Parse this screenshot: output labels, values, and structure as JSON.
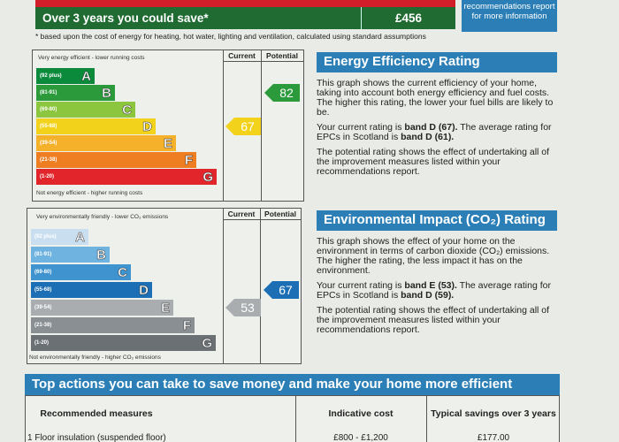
{
  "savings": {
    "label": "Over 3 years you could save*",
    "amount": "£456",
    "rec_note": "recommendations report for more information",
    "footnote": "* based upon the cost of energy for heating, hot water, lighting and ventilation, calculated using standard assumptions"
  },
  "eer_chart": {
    "top_label": "Very energy efficient - lower running costs",
    "bottom_label": "Not energy efficient - higher running costs",
    "col_current": "Current",
    "col_potential": "Potential",
    "bands": [
      {
        "range": "(92 plus)",
        "letter": "A",
        "color": "#0b8a3c"
      },
      {
        "range": "(81-91)",
        "letter": "B",
        "color": "#2a9a3a"
      },
      {
        "range": "(69-80)",
        "letter": "C",
        "color": "#8cc63e"
      },
      {
        "range": "(55-68)",
        "letter": "D",
        "color": "#f2d21b"
      },
      {
        "range": "(39-54)",
        "letter": "E",
        "color": "#f5b12a"
      },
      {
        "range": "(21-38)",
        "letter": "F",
        "color": "#ef7d22"
      },
      {
        "range": "(1-20)",
        "letter": "G",
        "color": "#e2252b"
      }
    ],
    "current": "67",
    "current_color": "#f2d21b",
    "potential": "82",
    "potential_color": "#2a9a3a"
  },
  "ei_chart": {
    "top_label": "Very environmentally friendly - lower CO₂ emissions",
    "bottom_label": "Not environmentally friendly - higher CO₂ emissions",
    "col_current": "Current",
    "col_potential": "Potential",
    "bands": [
      {
        "range": "(92 plus)",
        "letter": "A",
        "color": "#c9dff0"
      },
      {
        "range": "(81-91)",
        "letter": "B",
        "color": "#6fb3e0"
      },
      {
        "range": "(69-80)",
        "letter": "C",
        "color": "#3f93cf"
      },
      {
        "range": "(55-68)",
        "letter": "D",
        "color": "#1d6fb5"
      },
      {
        "range": "(39-54)",
        "letter": "E",
        "color": "#a9adb0"
      },
      {
        "range": "(21-38)",
        "letter": "F",
        "color": "#8a8f93"
      },
      {
        "range": "(1-20)",
        "letter": "G",
        "color": "#6b7075"
      }
    ],
    "current": "53",
    "current_color": "#a9adb0",
    "potential": "67",
    "potential_color": "#1d6fb5"
  },
  "eer_panel": {
    "title": "Energy Efficiency Rating",
    "p1": "This graph shows the current efficiency of your home, taking into account both energy efficiency and fuel costs. The higher this rating, the lower your fuel bills are likely to be.",
    "p2_pre": "Your current rating is ",
    "p2_bold1": "band D (67).",
    "p2_mid": " The average rating for EPCs in Scotland is ",
    "p2_bold2": "band D (61).",
    "p3": "The potential rating shows the effect of undertaking all of the improvement measures listed within your recommendations report."
  },
  "ei_panel": {
    "title": "Environmental Impact (CO₂) Rating",
    "p1": "This graph shows the effect of your home on the environment in terms of carbon dioxide (CO₂) emissions. The higher the rating, the less impact it has on the environment.",
    "p2_pre": "Your current rating is ",
    "p2_bold1": "band E (53).",
    "p2_mid": " The average rating for EPCs in Scotland is ",
    "p2_bold2": "band D (59).",
    "p3": "The potential rating shows the effect of undertaking all of the improvement measures listed within your recommendations report."
  },
  "actions": {
    "title": "Top actions you can take to save money and make your home more efficient",
    "headers": [
      "Recommended measures",
      "Indicative cost",
      "Typical savings over 3 years"
    ],
    "rows": [
      [
        "1 Floor insulation (suspended floor)",
        "£800 - £1,200",
        "£177.00"
      ]
    ]
  }
}
